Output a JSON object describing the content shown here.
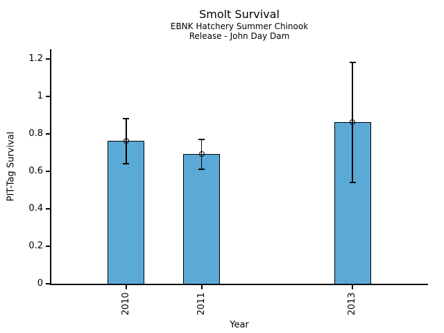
{
  "figure": {
    "title": "Smolt Survival",
    "subtitle_line1": "EBNK Hatchery Summer Chinook",
    "subtitle_line2": "Release - John Day Dam"
  },
  "chart_data": {
    "type": "bar",
    "title": "Smolt Survival",
    "subtitle": [
      "EBNK Hatchery Summer Chinook",
      "Release - John Day Dam"
    ],
    "xlabel": "Year",
    "ylabel": "PIT-Tag Survival",
    "categories": [
      "2010",
      "2011",
      "2013"
    ],
    "x_numeric": [
      2010,
      2011,
      2013
    ],
    "values": [
      0.76,
      0.69,
      0.86
    ],
    "error_low": [
      0.64,
      0.61,
      0.54
    ],
    "error_high": [
      0.88,
      0.77,
      1.18
    ],
    "bar_width_years": 0.49,
    "xlim": [
      2009,
      2014
    ],
    "ylim": [
      0,
      1.25
    ],
    "yticks": [
      0,
      0.2,
      0.4,
      0.6,
      0.8,
      1,
      1.2
    ],
    "ytick_labels": [
      "0",
      "0.2",
      "0.4",
      "0.6",
      "0.8",
      "1",
      "1.2"
    ],
    "grid": false,
    "legend": null,
    "marker": "open-circle",
    "bar_color": "#5BA9D6",
    "bar_edge_color": "#000000",
    "error_bar_color": "#000000",
    "text_color": "#000000",
    "background_color": "#FFFFFF"
  }
}
